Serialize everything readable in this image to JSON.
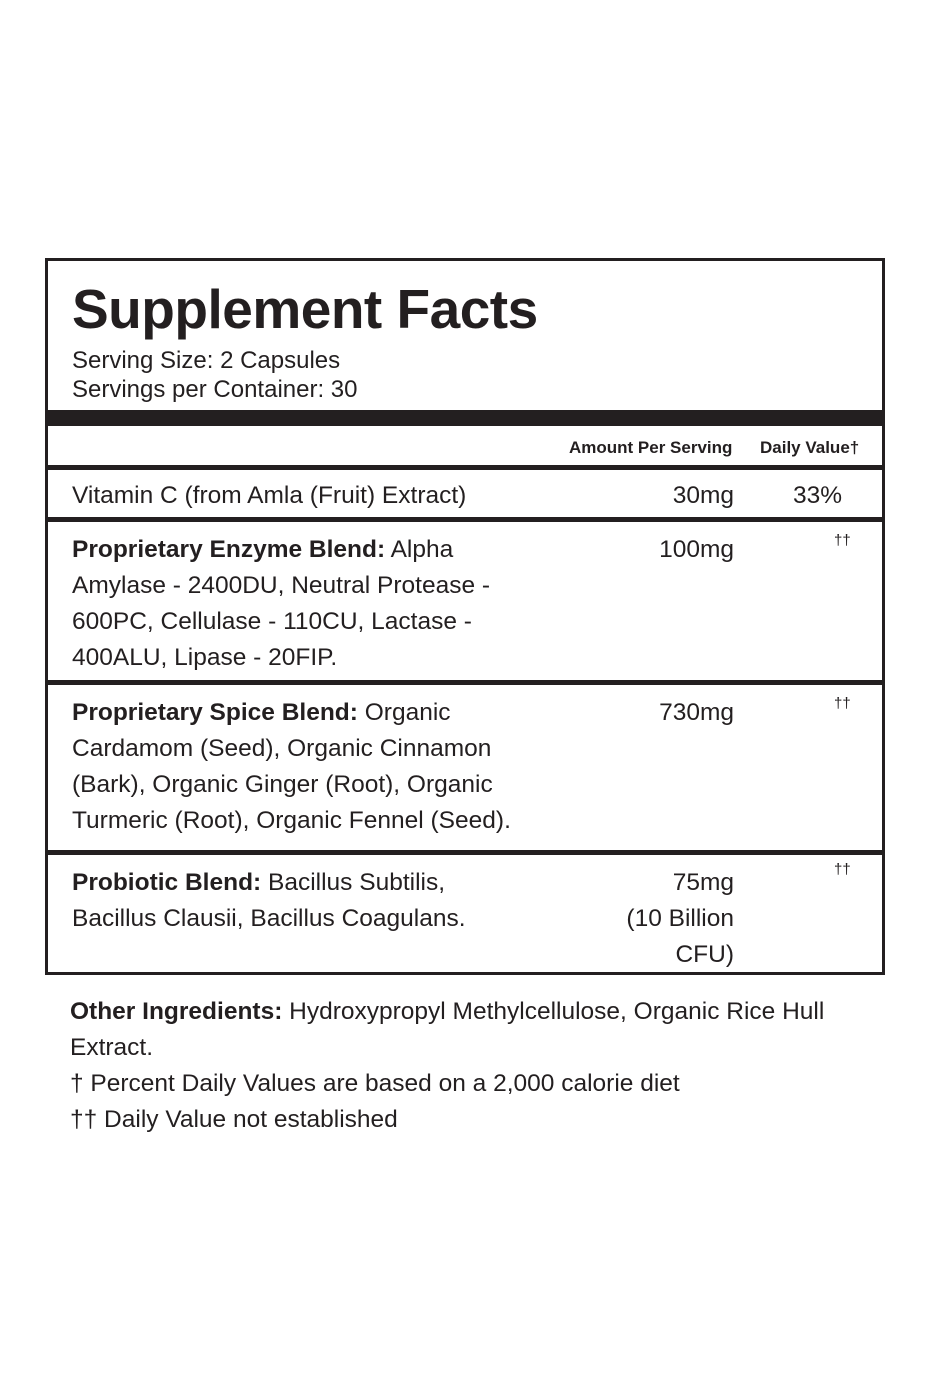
{
  "title": "Supplement Facts",
  "serving_size": "Serving Size: 2 Capsules",
  "servings_per_container": "Servings per Container: 30",
  "header": {
    "amount": "Amount Per Serving",
    "daily_value": "Daily Value†"
  },
  "rows": [
    {
      "label": "",
      "lines": [
        "Vitamin C (from Amla (Fruit) Extract)"
      ],
      "amount": [
        "30mg"
      ],
      "dv": "33%"
    },
    {
      "label": "Proprietary Enzyme Blend:",
      "lines": [
        " Alpha",
        "Amylase - 2400DU, Neutral Protease -",
        "600PC, Cellulase - 110CU, Lactase -",
        "400ALU, Lipase - 20FIP."
      ],
      "amount": [
        "100mg"
      ],
      "dv": "††"
    },
    {
      "label": "Proprietary Spice Blend:",
      "lines": [
        " Organic",
        "Cardamom (Seed), Organic Cinnamon",
        "(Bark), Organic Ginger (Root), Organic",
        "Turmeric (Root), Organic Fennel (Seed)."
      ],
      "amount": [
        "730mg"
      ],
      "dv": "††"
    },
    {
      "label": "Probiotic Blend:",
      "lines": [
        " Bacillus Subtilis,",
        "Bacillus Clausii, Bacillus Coagulans."
      ],
      "amount": [
        "75mg",
        "(10 Billion",
        "CFU)"
      ],
      "dv": "††"
    }
  ],
  "other_ingredients": {
    "label": "Other Ingredients:",
    "text": " Hydroxypropyl Methylcellulose, Organic Rice Hull Extract."
  },
  "footnotes": [
    "† Percent Daily Values are based on a 2,000 calorie diet",
    "†† Daily Value not established"
  ]
}
